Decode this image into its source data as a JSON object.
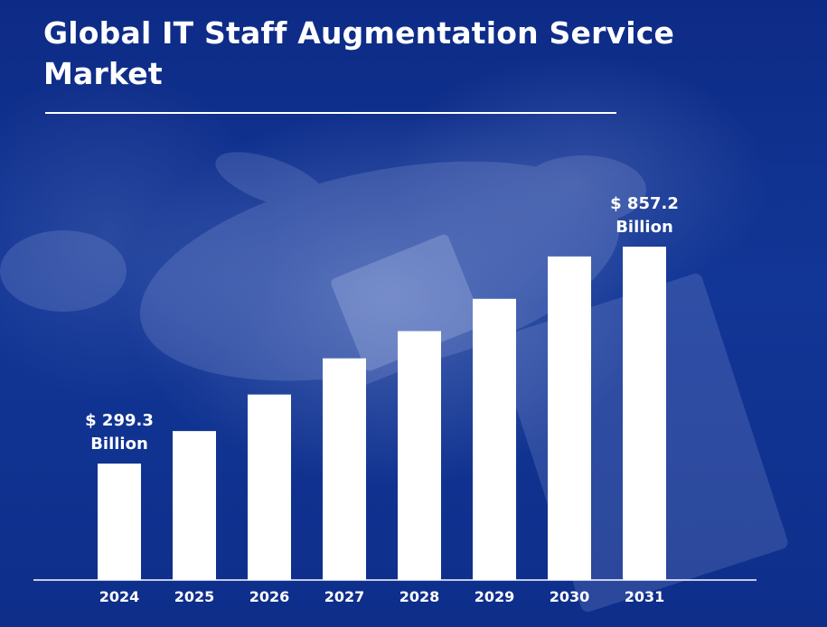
{
  "title": "Global IT Staff Augmentation Service Market",
  "chart_data": {
    "type": "bar",
    "title": "Global IT Staff Augmentation Service Market",
    "categories": [
      "2024",
      "2025",
      "2026",
      "2027",
      "2028",
      "2029",
      "2030",
      "2031"
    ],
    "values": [
      299.3,
      383,
      477,
      570,
      640,
      723,
      832,
      857.2
    ],
    "data_labels": [
      {
        "index": 0,
        "lines": [
          "$ 299.3",
          "Billion"
        ]
      },
      {
        "index": 7,
        "lines": [
          "$ 857.2",
          "Billion"
        ]
      }
    ],
    "xlabel": "",
    "ylabel": "",
    "ylim": [
      0,
      857.2
    ],
    "unit": "USD Billion",
    "grid": false,
    "legend": "none",
    "colors": {
      "bar": "#ffffff",
      "text": "#ffffff",
      "background": "#123696"
    }
  }
}
